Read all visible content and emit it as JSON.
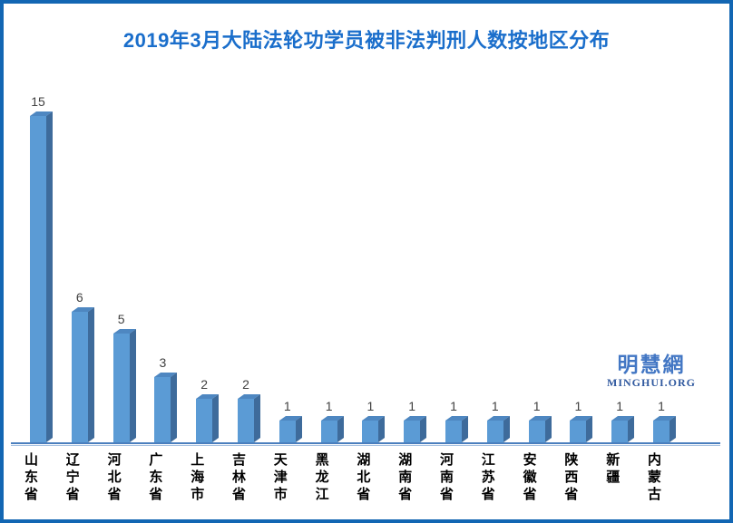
{
  "header": {
    "title": "2019年3月大陆法轮功学员被非法判刑人数按地区分布"
  },
  "watermark": {
    "cn": "明慧網",
    "en": "MINGHUI.ORG"
  },
  "chart_data": {
    "type": "bar",
    "style": "3d-column",
    "title": "2019年3月大陆法轮功学员被非法判刑人数按地区分布",
    "categories": [
      "山东省",
      "辽宁省",
      "河北省",
      "广东省",
      "上海市",
      "吉林省",
      "天津市",
      "黑龙江",
      "湖北省",
      "湖南省",
      "河南省",
      "江苏省",
      "安徽省",
      "陕西省",
      "新疆",
      "内蒙古"
    ],
    "values": [
      15,
      6,
      5,
      3,
      2,
      2,
      1,
      1,
      1,
      1,
      1,
      1,
      1,
      1,
      1,
      1
    ],
    "xlabel": "",
    "ylabel": "",
    "ylim": [
      0,
      15
    ],
    "grid": false,
    "legend": false,
    "value_labels": true,
    "y_axis_visible": false,
    "x_labels_orientation": "vertical-upright"
  },
  "colors": {
    "border": "#1266b3",
    "title": "#1a6ecb",
    "bar_front": "#5b9bd5",
    "bar_side": "#3e6b9b",
    "bar_top": "#4e87c1",
    "axis_line": "#4a7ebd",
    "axis_line_light": "#a9c3e2",
    "value_label": "#404040",
    "category_label": "#000000",
    "watermark_cn": "#4377c4",
    "watermark_en": "#30599f"
  }
}
